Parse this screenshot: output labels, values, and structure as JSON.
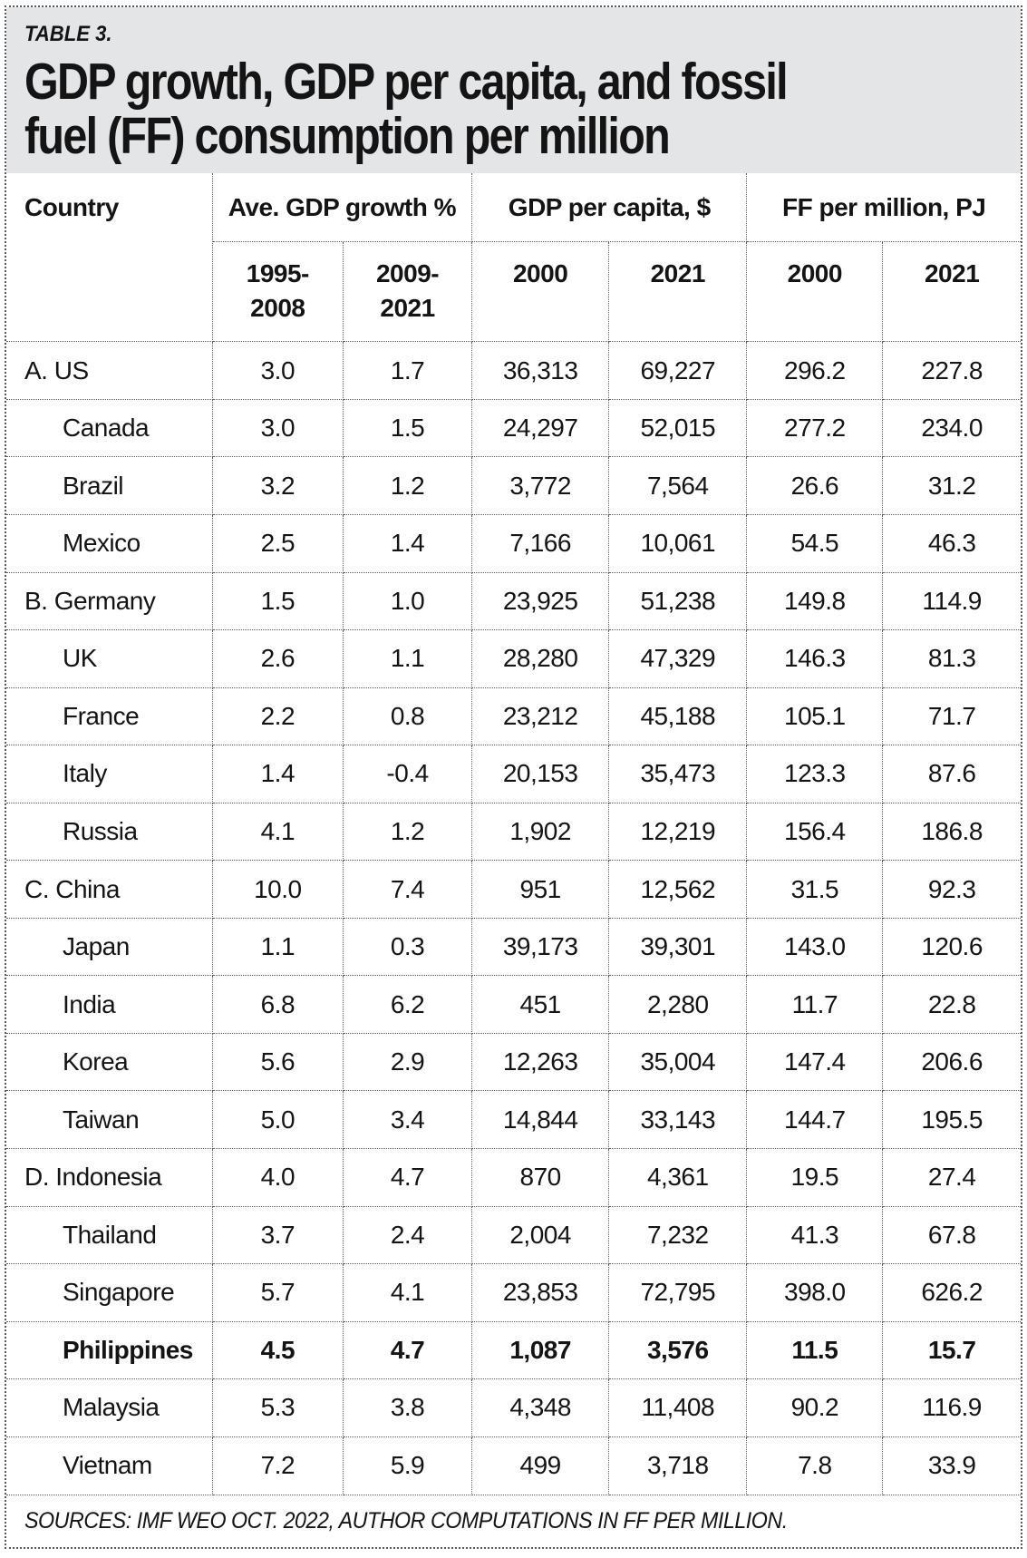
{
  "table_label": "TABLE 3.",
  "title_line1": "GDP growth, GDP per capita, and fossil",
  "title_line2": "fuel (FF) consumption per million",
  "columns": {
    "country_header": "Country",
    "group_headers": [
      "Ave. GDP growth %",
      "GDP per capita, $",
      "FF per million, PJ"
    ],
    "subheaders": [
      {
        "line1": "1995-",
        "line2": "2008"
      },
      {
        "line1": "2009-",
        "line2": "2021"
      },
      {
        "line1": "2000",
        "line2": ""
      },
      {
        "line1": "2021",
        "line2": ""
      },
      {
        "line1": "2000",
        "line2": ""
      },
      {
        "line1": "2021",
        "line2": ""
      }
    ]
  },
  "rows": [
    {
      "country": "A. US",
      "indent": false,
      "bold": false,
      "values": [
        "3.0",
        "1.7",
        "36,313",
        "69,227",
        "296.2",
        "227.8"
      ]
    },
    {
      "country": "Canada",
      "indent": true,
      "bold": false,
      "values": [
        "3.0",
        "1.5",
        "24,297",
        "52,015",
        "277.2",
        "234.0"
      ]
    },
    {
      "country": "Brazil",
      "indent": true,
      "bold": false,
      "values": [
        "3.2",
        "1.2",
        "3,772",
        "7,564",
        "26.6",
        "31.2"
      ]
    },
    {
      "country": "Mexico",
      "indent": true,
      "bold": false,
      "values": [
        "2.5",
        "1.4",
        "7,166",
        "10,061",
        "54.5",
        "46.3"
      ]
    },
    {
      "country": "B. Germany",
      "indent": false,
      "bold": false,
      "values": [
        "1.5",
        "1.0",
        "23,925",
        "51,238",
        "149.8",
        "114.9"
      ]
    },
    {
      "country": "UK",
      "indent": true,
      "bold": false,
      "values": [
        "2.6",
        "1.1",
        "28,280",
        "47,329",
        "146.3",
        "81.3"
      ]
    },
    {
      "country": "France",
      "indent": true,
      "bold": false,
      "values": [
        "2.2",
        "0.8",
        "23,212",
        "45,188",
        "105.1",
        "71.7"
      ]
    },
    {
      "country": "Italy",
      "indent": true,
      "bold": false,
      "values": [
        "1.4",
        "-0.4",
        "20,153",
        "35,473",
        "123.3",
        "87.6"
      ]
    },
    {
      "country": "Russia",
      "indent": true,
      "bold": false,
      "values": [
        "4.1",
        "1.2",
        "1,902",
        "12,219",
        "156.4",
        "186.8"
      ]
    },
    {
      "country": "C. China",
      "indent": false,
      "bold": false,
      "values": [
        "10.0",
        "7.4",
        "951",
        "12,562",
        "31.5",
        "92.3"
      ]
    },
    {
      "country": "Japan",
      "indent": true,
      "bold": false,
      "values": [
        "1.1",
        "0.3",
        "39,173",
        "39,301",
        "143.0",
        "120.6"
      ]
    },
    {
      "country": "India",
      "indent": true,
      "bold": false,
      "values": [
        "6.8",
        "6.2",
        "451",
        "2,280",
        "11.7",
        "22.8"
      ]
    },
    {
      "country": "Korea",
      "indent": true,
      "bold": false,
      "values": [
        "5.6",
        "2.9",
        "12,263",
        "35,004",
        "147.4",
        "206.6"
      ]
    },
    {
      "country": "Taiwan",
      "indent": true,
      "bold": false,
      "values": [
        "5.0",
        "3.4",
        "14,844",
        "33,143",
        "144.7",
        "195.5"
      ]
    },
    {
      "country": "D. Indonesia",
      "indent": false,
      "bold": false,
      "values": [
        "4.0",
        "4.7",
        "870",
        "4,361",
        "19.5",
        "27.4"
      ]
    },
    {
      "country": "Thailand",
      "indent": true,
      "bold": false,
      "values": [
        "3.7",
        "2.4",
        "2,004",
        "7,232",
        "41.3",
        "67.8"
      ]
    },
    {
      "country": "Singapore",
      "indent": true,
      "bold": false,
      "values": [
        "5.7",
        "4.1",
        "23,853",
        "72,795",
        "398.0",
        "626.2"
      ]
    },
    {
      "country": "Philippines",
      "indent": true,
      "bold": true,
      "values": [
        "4.5",
        "4.7",
        "1,087",
        "3,576",
        "11.5",
        "15.7"
      ]
    },
    {
      "country": "Malaysia",
      "indent": true,
      "bold": false,
      "values": [
        "5.3",
        "3.8",
        "4,348",
        "11,408",
        "90.2",
        "116.9"
      ]
    },
    {
      "country": "Vietnam",
      "indent": true,
      "bold": false,
      "values": [
        "7.2",
        "5.9",
        "499",
        "3,718",
        "7.8",
        "33.9"
      ]
    }
  ],
  "source_note": "SOURCES: IMF WEO OCT. 2022, AUTHOR COMPUTATIONS IN FF PER MILLION.",
  "colors": {
    "band_bg": "#e4e5e7",
    "border": "#5a5a5a",
    "text": "#141414"
  }
}
